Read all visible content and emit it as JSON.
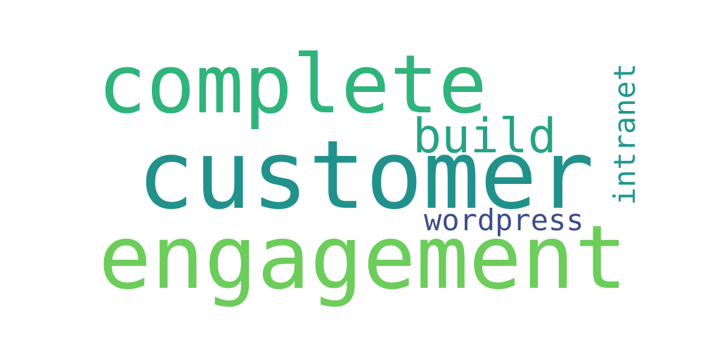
{
  "cloud": {
    "words": [
      {
        "text": "complete",
        "color": "#2fb47c"
      },
      {
        "text": "customer",
        "color": "#21918c"
      },
      {
        "text": "engagement",
        "color": "#6ccd5a"
      },
      {
        "text": "build",
        "color": "#26a384"
      },
      {
        "text": "wordpress",
        "color": "#3e4c8a"
      },
      {
        "text": "intranet",
        "color": "#1f988b"
      }
    ]
  }
}
